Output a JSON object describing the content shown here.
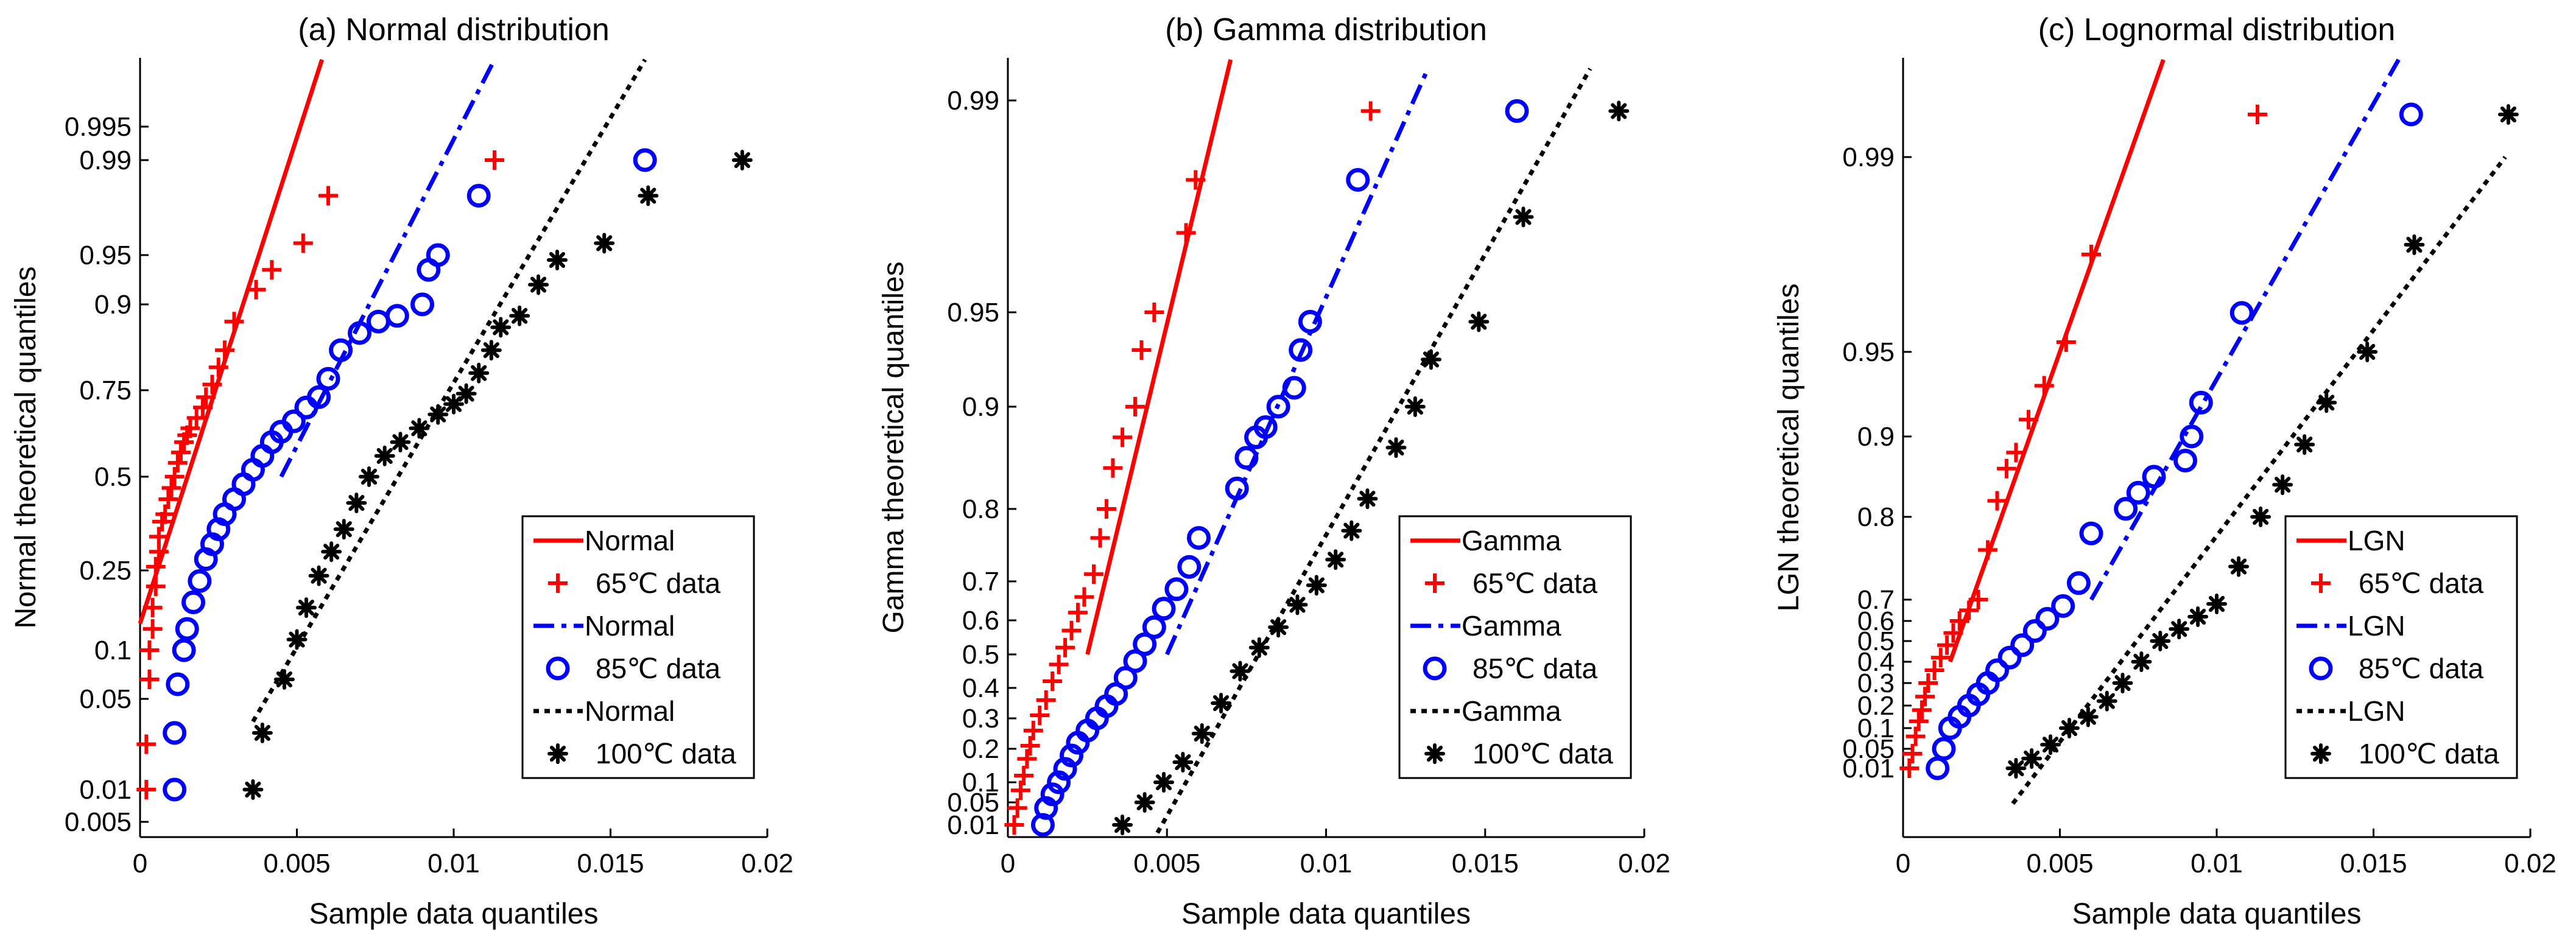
{
  "chart_data": [
    {
      "type": "scatter",
      "title": "(a) Normal distribution",
      "xlabel": "Sample data quantiles",
      "ylabel": "Normal theoretical quantiles",
      "xlim": [
        0,
        0.02
      ],
      "x_ticks": [
        "0",
        "0.005",
        "0.01",
        "0.015",
        "0.02"
      ],
      "y_ticks": [
        "0.005",
        "0.01",
        "0.05",
        "0.1",
        "0.25",
        "0.5",
        "0.75",
        "0.9",
        "0.95",
        "0.99",
        "0.995"
      ],
      "legend_position": "lower-right",
      "series": [
        {
          "name": "Normal",
          "kind": "line",
          "style": "solid",
          "color": "#ff0000",
          "points": [
            [
              0,
              0.15
            ],
            [
              0.0058,
              0.9995
            ]
          ]
        },
        {
          "name": "65℃ data",
          "kind": "marker",
          "marker": "plus",
          "color": "#ff0000",
          "x": [
            0.0002,
            0.0002,
            0.0003,
            0.0003,
            0.0004,
            0.0004,
            0.0005,
            0.0005,
            0.0006,
            0.0006,
            0.0007,
            0.0008,
            0.0009,
            0.001,
            0.0011,
            0.0012,
            0.0013,
            0.0014,
            0.0015,
            0.0016,
            0.0018,
            0.002,
            0.0021,
            0.0023,
            0.0025,
            0.0027,
            0.003,
            0.0037,
            0.0042,
            0.0052,
            0.006,
            0.0113
          ],
          "y": [
            0.01,
            0.03,
            0.07,
            0.1,
            0.14,
            0.18,
            0.22,
            0.26,
            0.3,
            0.34,
            0.38,
            0.4,
            0.44,
            0.47,
            0.5,
            0.54,
            0.57,
            0.6,
            0.62,
            0.64,
            0.67,
            0.7,
            0.73,
            0.76,
            0.79,
            0.82,
            0.87,
            0.915,
            0.935,
            0.955,
            0.975,
            0.99
          ]
        },
        {
          "name": "Normal",
          "kind": "line",
          "style": "dashdot",
          "color": "#0000ff",
          "points": [
            [
              0.0045,
              0.5
            ],
            [
              0.0113,
              0.9995
            ]
          ]
        },
        {
          "name": "85℃ data",
          "kind": "marker",
          "marker": "circle",
          "color": "#0000ff",
          "x": [
            0.0011,
            0.0011,
            0.0012,
            0.0014,
            0.0015,
            0.0017,
            0.0019,
            0.0021,
            0.0023,
            0.0025,
            0.0027,
            0.003,
            0.0033,
            0.0036,
            0.0039,
            0.0042,
            0.0045,
            0.0049,
            0.0053,
            0.0057,
            0.006,
            0.0064,
            0.007,
            0.0076,
            0.0082,
            0.009,
            0.0092,
            0.0095,
            0.0108,
            0.0161
          ],
          "y": [
            0.01,
            0.035,
            0.065,
            0.1,
            0.14,
            0.19,
            0.23,
            0.28,
            0.32,
            0.36,
            0.4,
            0.44,
            0.48,
            0.52,
            0.56,
            0.6,
            0.63,
            0.66,
            0.7,
            0.73,
            0.77,
            0.82,
            0.85,
            0.87,
            0.88,
            0.9,
            0.935,
            0.95,
            0.975,
            0.99
          ]
        },
        {
          "name": "Normal",
          "kind": "line",
          "style": "dotted",
          "color": "#000000",
          "points": [
            [
              0.0036,
              0.04
            ],
            [
              0.0161,
              0.9995
            ]
          ]
        },
        {
          "name": "100℃ data",
          "kind": "marker",
          "marker": "asterisk",
          "color": "#000000",
          "x": [
            0.0036,
            0.0039,
            0.0046,
            0.005,
            0.0053,
            0.0057,
            0.0061,
            0.0065,
            0.0069,
            0.0073,
            0.0078,
            0.0083,
            0.0089,
            0.0095,
            0.01,
            0.0104,
            0.0108,
            0.0112,
            0.0115,
            0.0121,
            0.0127,
            0.0133,
            0.0148,
            0.0162,
            0.0192
          ],
          "y": [
            0.01,
            0.035,
            0.07,
            0.12,
            0.18,
            0.24,
            0.3,
            0.36,
            0.43,
            0.5,
            0.56,
            0.6,
            0.64,
            0.68,
            0.71,
            0.74,
            0.78,
            0.82,
            0.86,
            0.88,
            0.92,
            0.945,
            0.955,
            0.975,
            0.99
          ]
        }
      ]
    },
    {
      "type": "scatter",
      "title": "(b) Gamma distribution",
      "xlabel": "Sample data quantiles",
      "ylabel": "Gamma theoretical quantiles",
      "xlim": [
        0,
        0.02
      ],
      "x_ticks": [
        "0",
        "0.005",
        "0.01",
        "0.015",
        "0.02"
      ],
      "y_ticks": [
        "0.01",
        "0.05",
        "0.1",
        "0.2",
        "0.3",
        "0.4",
        "0.5",
        "0.6",
        "0.7",
        "0.8",
        "0.9",
        "0.95",
        "0.99"
      ],
      "legend_position": "lower-right",
      "series": [
        {
          "name": "Gamma",
          "kind": "line",
          "style": "solid",
          "color": "#ff0000",
          "points": [
            [
              0.0025,
              0.5
            ],
            [
              0.007,
              0.999
            ]
          ]
        },
        {
          "name": "65℃ data",
          "kind": "marker",
          "marker": "plus",
          "color": "#ff0000",
          "x": [
            0.0002,
            0.0003,
            0.0004,
            0.0005,
            0.0006,
            0.0007,
            0.0008,
            0.001,
            0.0012,
            0.0014,
            0.0016,
            0.0018,
            0.002,
            0.0022,
            0.0024,
            0.0027,
            0.0029,
            0.0031,
            0.0033,
            0.0036,
            0.004,
            0.0042,
            0.0046,
            0.0056,
            0.0059,
            0.0114
          ],
          "y": [
            0.01,
            0.04,
            0.08,
            0.12,
            0.17,
            0.21,
            0.26,
            0.31,
            0.36,
            0.42,
            0.47,
            0.52,
            0.57,
            0.62,
            0.66,
            0.71,
            0.76,
            0.8,
            0.84,
            0.87,
            0.9,
            0.93,
            0.95,
            0.965,
            0.975,
            0.988
          ]
        },
        {
          "name": "Gamma",
          "kind": "line",
          "style": "dashdot",
          "color": "#0000ff",
          "points": [
            [
              0.005,
              0.5
            ],
            [
              0.0132,
              0.997
            ]
          ]
        },
        {
          "name": "85℃ data",
          "kind": "marker",
          "marker": "circle",
          "color": "#0000ff",
          "x": [
            0.0011,
            0.0012,
            0.0014,
            0.0016,
            0.0018,
            0.002,
            0.0022,
            0.0025,
            0.0028,
            0.0031,
            0.0034,
            0.0037,
            0.004,
            0.0043,
            0.0046,
            0.0049,
            0.0053,
            0.0057,
            0.006,
            0.0072,
            0.0075,
            0.0078,
            0.0081,
            0.0085,
            0.009,
            0.0092,
            0.0095,
            0.011,
            0.016
          ],
          "y": [
            0.01,
            0.04,
            0.07,
            0.1,
            0.14,
            0.18,
            0.22,
            0.26,
            0.3,
            0.34,
            0.38,
            0.43,
            0.48,
            0.53,
            0.58,
            0.63,
            0.68,
            0.72,
            0.76,
            0.82,
            0.85,
            0.87,
            0.88,
            0.9,
            0.91,
            0.93,
            0.945,
            0.975,
            0.988
          ]
        },
        {
          "name": "Gamma",
          "kind": "line",
          "style": "dotted",
          "color": "#000000",
          "points": [
            [
              0.0047,
              0.001
            ],
            [
              0.0183,
              0.997
            ]
          ]
        },
        {
          "name": "100℃ data",
          "kind": "marker",
          "marker": "asterisk",
          "color": "#000000",
          "x": [
            0.0036,
            0.0043,
            0.0049,
            0.0055,
            0.0061,
            0.0067,
            0.0073,
            0.0079,
            0.0085,
            0.0091,
            0.0097,
            0.0103,
            0.0108,
            0.0113,
            0.0122,
            0.0128,
            0.0133,
            0.0148,
            0.0162,
            0.0192
          ],
          "y": [
            0.01,
            0.05,
            0.1,
            0.16,
            0.25,
            0.35,
            0.45,
            0.52,
            0.58,
            0.64,
            0.69,
            0.73,
            0.77,
            0.81,
            0.86,
            0.9,
            0.925,
            0.945,
            0.968,
            0.988
          ]
        }
      ]
    },
    {
      "type": "scatter",
      "title": "(c) Lognormal distribution",
      "xlabel": "Sample data quantiles",
      "ylabel": "LGN theoretical quantiles",
      "xlim": [
        0,
        0.02
      ],
      "x_ticks": [
        "0",
        "0.005",
        "0.01",
        "0.015",
        "0.02"
      ],
      "y_ticks": [
        "0.01",
        "0.05",
        "0.1",
        "0.2",
        "0.3",
        "0.4",
        "0.5",
        "0.6",
        "0.7",
        "0.8",
        "0.9",
        "0.95",
        "0.99"
      ],
      "legend_position": "lower-right",
      "series": [
        {
          "name": "LGN",
          "kind": "line",
          "style": "solid",
          "color": "#ff0000",
          "points": [
            [
              0.0015,
              0.4
            ],
            [
              0.0083,
              0.9985
            ]
          ]
        },
        {
          "name": "65℃ data",
          "kind": "marker",
          "marker": "plus",
          "color": "#ff0000",
          "x": [
            0.0002,
            0.0003,
            0.0004,
            0.0005,
            0.0006,
            0.0007,
            0.0008,
            0.001,
            0.0012,
            0.0014,
            0.0016,
            0.0018,
            0.0021,
            0.0024,
            0.0027,
            0.003,
            0.0033,
            0.0036,
            0.004,
            0.0045,
            0.0052,
            0.006,
            0.0113
          ],
          "y": [
            0.01,
            0.04,
            0.08,
            0.13,
            0.18,
            0.24,
            0.3,
            0.36,
            0.42,
            0.48,
            0.54,
            0.6,
            0.65,
            0.7,
            0.76,
            0.82,
            0.86,
            0.88,
            0.91,
            0.93,
            0.952,
            0.97,
            0.993
          ]
        },
        {
          "name": "LGN",
          "kind": "line",
          "style": "dashdot",
          "color": "#0000ff",
          "points": [
            [
              0.006,
              0.7
            ],
            [
              0.0158,
              0.998
            ]
          ]
        },
        {
          "name": "85℃ data",
          "kind": "marker",
          "marker": "circle",
          "color": "#0000ff",
          "x": [
            0.0011,
            0.0013,
            0.0015,
            0.0018,
            0.0021,
            0.0024,
            0.0027,
            0.003,
            0.0034,
            0.0038,
            0.0042,
            0.0046,
            0.0051,
            0.0056,
            0.006,
            0.0071,
            0.0075,
            0.008,
            0.009,
            0.0092,
            0.0095,
            0.0108,
            0.0162
          ],
          "y": [
            0.01,
            0.05,
            0.1,
            0.15,
            0.2,
            0.25,
            0.3,
            0.36,
            0.42,
            0.48,
            0.55,
            0.61,
            0.67,
            0.72,
            0.78,
            0.81,
            0.83,
            0.85,
            0.87,
            0.9,
            0.92,
            0.958,
            0.993
          ]
        },
        {
          "name": "LGN",
          "kind": "line",
          "style": "dotted",
          "color": "#000000",
          "points": [
            [
              0.0035,
              0.003
            ],
            [
              0.0192,
              0.99
            ]
          ]
        },
        {
          "name": "100℃ data",
          "kind": "marker",
          "marker": "asterisk",
          "color": "#000000",
          "x": [
            0.0036,
            0.0041,
            0.0047,
            0.0053,
            0.0059,
            0.0065,
            0.007,
            0.0076,
            0.0082,
            0.0088,
            0.0094,
            0.01,
            0.0107,
            0.0114,
            0.0121,
            0.0128,
            0.0135,
            0.0148,
            0.0163,
            0.0193
          ],
          "y": [
            0.01,
            0.03,
            0.06,
            0.1,
            0.15,
            0.22,
            0.3,
            0.4,
            0.5,
            0.56,
            0.62,
            0.68,
            0.74,
            0.8,
            0.84,
            0.89,
            0.92,
            0.95,
            0.972,
            0.993
          ]
        }
      ]
    }
  ]
}
